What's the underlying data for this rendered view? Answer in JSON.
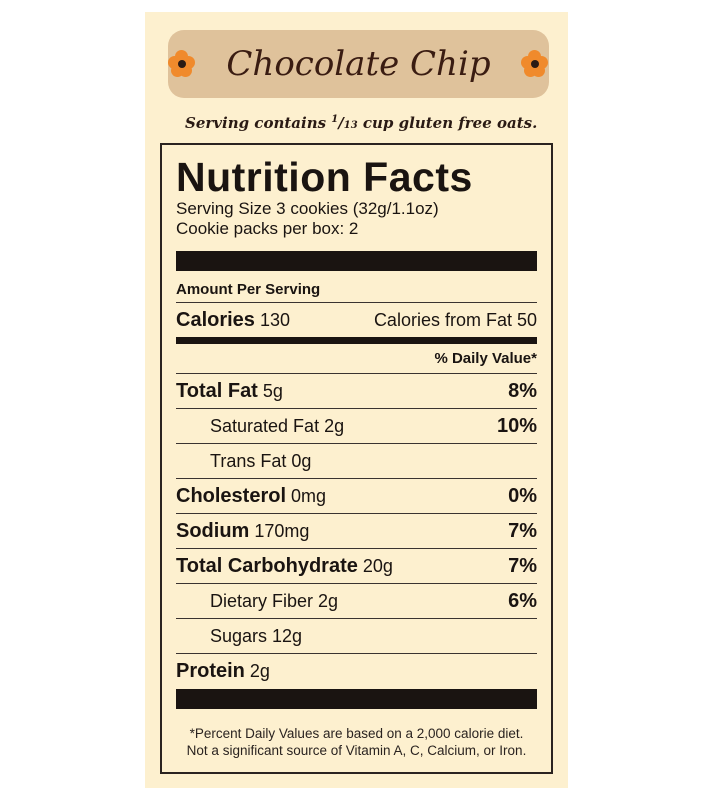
{
  "header": {
    "title": "Chocolate Chip",
    "subtitle_pre": "Serving contains ",
    "fraction_num": "1",
    "fraction_den": "13",
    "subtitle_post": " cup gluten free oats.",
    "flower_color": "#f08a2c",
    "pill_color": "#dfc29b",
    "background": "#fdf0cf"
  },
  "facts": {
    "title": "Nutrition Facts",
    "serving_size": "Serving Size 3 cookies (32g/1.1oz)",
    "packs": "Cookie packs per box: 2",
    "amount_per_serving": "Amount Per Serving",
    "calories_label": "Calories",
    "calories_value": "130",
    "calories_fat": "Calories from Fat 50",
    "dv_header": "% Daily Value*",
    "rows": [
      {
        "label": "Total Fat",
        "amount": "5g",
        "dv": "8%",
        "bold": true
      },
      {
        "label": "Saturated Fat 2g",
        "amount": "",
        "dv": "10%",
        "bold": false
      },
      {
        "label": "Trans Fat 0g",
        "amount": "",
        "dv": "",
        "bold": false
      },
      {
        "label": "Cholesterol",
        "amount": "0mg",
        "dv": "0%",
        "bold": true
      },
      {
        "label": "Sodium",
        "amount": "170mg",
        "dv": "7%",
        "bold": true
      },
      {
        "label": "Total Carbohydrate",
        "amount": "20g",
        "dv": "7%",
        "bold": true
      },
      {
        "label": "Dietary Fiber 2g",
        "amount": "",
        "dv": "6%",
        "bold": false
      },
      {
        "label": "Sugars 12g",
        "amount": "",
        "dv": "",
        "bold": false
      },
      {
        "label": "Protein",
        "amount": "2g",
        "dv": "",
        "bold": true
      }
    ],
    "footnote1": "*Percent Daily Values are based on a 2,000 calorie diet.",
    "footnote2": "Not a significant source of Vitamin A, C, Calcium, or Iron."
  }
}
